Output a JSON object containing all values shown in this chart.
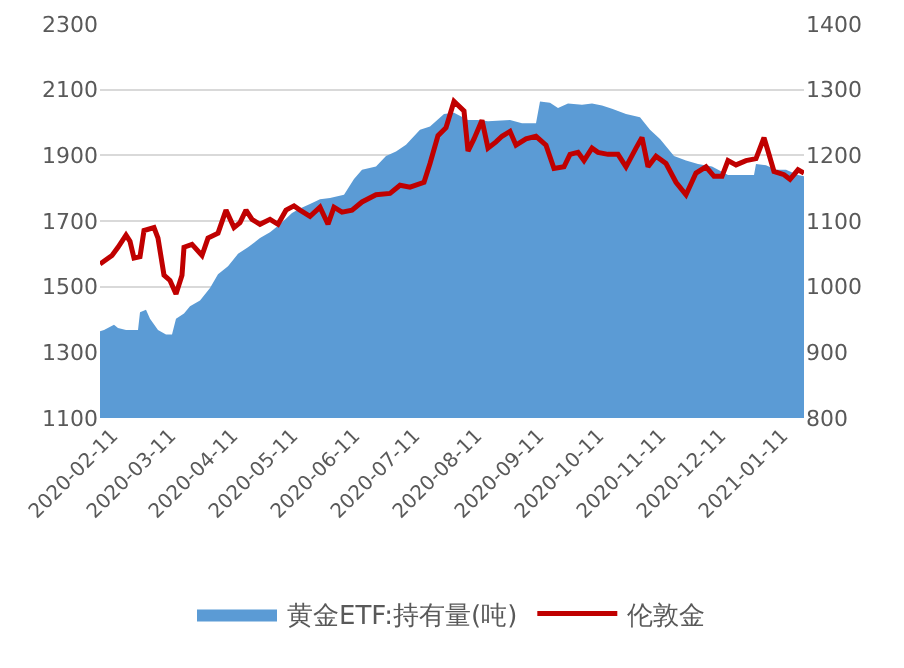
{
  "chart_data": {
    "type": "line",
    "xlim": [
      "2020-02-05",
      "2021-01-22"
    ],
    "xticks": [
      "2020-02-11",
      "2020-03-11",
      "2020-04-11",
      "2020-05-11",
      "2020-06-11",
      "2020-07-11",
      "2020-08-11",
      "2020-09-11",
      "2020-10-11",
      "2020-11-11",
      "2020-12-11",
      "2021-01-11"
    ],
    "ylim": [
      1100,
      2300
    ],
    "yticks": [
      1100,
      1300,
      1500,
      1700,
      1900,
      2100,
      2300
    ],
    "y2lim": [
      800,
      1400
    ],
    "y2ticks": [
      800,
      900,
      1000,
      1100,
      1200,
      1300,
      1400
    ],
    "grid": "y",
    "legend": "bottom",
    "series": [
      {
        "name": "黄金ETF:持有量(吨)",
        "type": "area",
        "axis": "y2",
        "color": "#5b9bd5",
        "x": [
          "2020-02-05",
          "2020-02-07",
          "2020-02-12",
          "2020-02-14",
          "2020-02-18",
          "2020-02-24",
          "2020-02-25",
          "2020-02-28",
          "2020-03-01",
          "2020-03-05",
          "2020-03-09",
          "2020-03-12",
          "2020-03-14",
          "2020-03-18",
          "2020-03-21",
          "2020-03-26",
          "2020-03-31",
          "2020-04-04",
          "2020-04-09",
          "2020-04-14",
          "2020-04-19",
          "2020-04-25",
          "2020-04-30",
          "2020-05-05",
          "2020-05-11",
          "2020-05-15",
          "2020-05-20",
          "2020-05-25",
          "2020-05-30",
          "2020-06-06",
          "2020-06-11",
          "2020-06-15",
          "2020-06-22",
          "2020-06-27",
          "2020-07-02",
          "2020-07-07",
          "2020-07-14",
          "2020-07-19",
          "2020-07-26",
          "2020-07-31",
          "2020-08-07",
          "2020-08-12",
          "2020-08-17",
          "2020-08-28",
          "2020-09-03",
          "2020-09-10",
          "2020-09-12",
          "2020-09-17",
          "2020-09-21",
          "2020-09-26",
          "2020-10-03",
          "2020-10-08",
          "2020-10-13",
          "2020-10-18",
          "2020-10-25",
          "2020-11-01",
          "2020-11-06",
          "2020-11-11",
          "2020-11-18",
          "2020-11-24",
          "2020-11-30",
          "2020-12-07",
          "2020-12-15",
          "2020-12-23",
          "2020-12-28",
          "2020-12-29",
          "2021-01-03",
          "2021-01-08",
          "2021-01-13",
          "2021-01-19",
          "2021-01-22"
        ],
        "values": [
          932,
          934,
          942,
          937,
          934,
          934,
          961,
          965,
          951,
          934,
          927,
          927,
          951,
          959,
          970,
          979,
          998,
          1019,
          1031,
          1050,
          1060,
          1074,
          1083,
          1095,
          1112,
          1119,
          1126,
          1133,
          1135,
          1140,
          1164,
          1178,
          1183,
          1199,
          1206,
          1216,
          1239,
          1244,
          1263,
          1265,
          1254,
          1254,
          1252,
          1254,
          1249,
          1249,
          1282,
          1280,
          1272,
          1279,
          1277,
          1279,
          1276,
          1271,
          1263,
          1258,
          1239,
          1225,
          1199,
          1192,
          1187,
          1183,
          1170,
          1170,
          1170,
          1187,
          1185,
          1178,
          1178,
          1170,
          1168
        ]
      },
      {
        "name": "伦敦金",
        "color": "#c00000",
        "x": [
          "2020-02-05",
          "2020-02-11",
          "2020-02-14",
          "2020-02-18",
          "2020-02-20",
          "2020-02-22",
          "2020-02-25",
          "2020-02-27",
          "2020-03-03",
          "2020-03-05",
          "2020-03-08",
          "2020-03-11",
          "2020-03-14",
          "2020-03-17",
          "2020-03-18",
          "2020-03-22",
          "2020-03-27",
          "2020-03-30",
          "2020-04-04",
          "2020-04-08",
          "2020-04-12",
          "2020-04-15",
          "2020-04-18",
          "2020-04-21",
          "2020-04-25",
          "2020-04-30",
          "2020-05-04",
          "2020-05-08",
          "2020-05-12",
          "2020-05-15",
          "2020-05-20",
          "2020-05-25",
          "2020-05-29",
          "2020-06-01",
          "2020-06-05",
          "2020-06-10",
          "2020-06-15",
          "2020-06-22",
          "2020-06-29",
          "2020-07-04",
          "2020-07-09",
          "2020-07-16",
          "2020-07-19",
          "2020-07-23",
          "2020-07-27",
          "2020-07-31",
          "2020-08-05",
          "2020-08-07",
          "2020-08-10",
          "2020-08-14",
          "2020-08-17",
          "2020-08-21",
          "2020-08-24",
          "2020-08-28",
          "2020-08-31",
          "2020-09-05",
          "2020-09-10",
          "2020-09-15",
          "2020-09-19",
          "2020-09-24",
          "2020-09-27",
          "2020-10-01",
          "2020-10-04",
          "2020-10-08",
          "2020-10-11",
          "2020-10-16",
          "2020-10-21",
          "2020-10-25",
          "2020-10-30",
          "2020-11-02",
          "2020-11-05",
          "2020-11-09",
          "2020-11-14",
          "2020-11-19",
          "2020-11-24",
          "2020-11-29",
          "2020-12-04",
          "2020-12-08",
          "2020-12-12",
          "2020-12-15",
          "2020-12-19",
          "2020-12-24",
          "2020-12-29",
          "2021-01-02",
          "2021-01-04",
          "2021-01-07",
          "2021-01-12",
          "2021-01-15",
          "2021-01-19",
          "2021-01-22"
        ],
        "values": [
          1569,
          1595,
          1620,
          1657,
          1638,
          1587,
          1591,
          1671,
          1680,
          1648,
          1535,
          1519,
          1478,
          1535,
          1620,
          1629,
          1595,
          1648,
          1663,
          1733,
          1680,
          1695,
          1733,
          1705,
          1690,
          1705,
          1690,
          1733,
          1746,
          1733,
          1714,
          1742,
          1690,
          1742,
          1727,
          1733,
          1758,
          1780,
          1784,
          1809,
          1803,
          1818,
          1875,
          1960,
          1984,
          2064,
          2035,
          1913,
          1950,
          2007,
          1922,
          1941,
          1958,
          1973,
          1931,
          1950,
          1958,
          1931,
          1860,
          1865,
          1903,
          1909,
          1884,
          1922,
          1909,
          1903,
          1903,
          1865,
          1922,
          1954,
          1865,
          1897,
          1875,
          1818,
          1780,
          1846,
          1865,
          1836,
          1836,
          1884,
          1871,
          1884,
          1890,
          1954,
          1913,
          1851,
          1841,
          1827,
          1856,
          1846
        ]
      }
    ]
  }
}
